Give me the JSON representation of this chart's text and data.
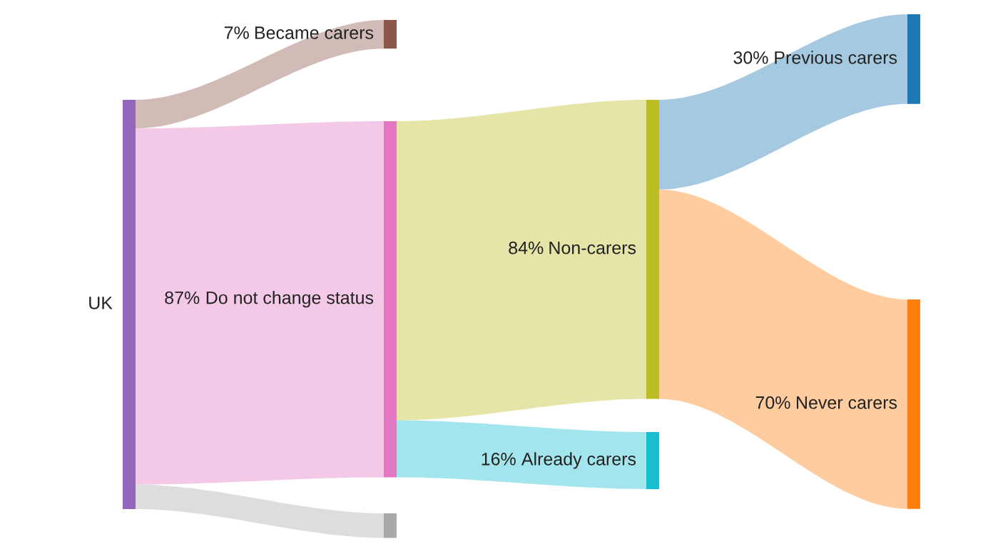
{
  "chart_data": {
    "type": "other",
    "categories": [
      "UK",
      "Became carers",
      "Do not change status",
      null,
      "Non-carers",
      "Already carers",
      "Previous carers",
      "Never carers"
    ],
    "values": [
      null,
      7,
      87,
      null,
      84,
      16,
      30,
      70
    ],
    "value_labels": [
      null,
      "7%",
      "87%",
      null,
      "84%",
      "16%",
      "30%",
      "70%"
    ],
    "colors": [
      "#9467bd",
      "#8c564b",
      "#e377c2",
      "#a9a9a9",
      "#bcbd22",
      "#17becf",
      "#1f77b4",
      "#ff7f0e"
    ]
  }
}
